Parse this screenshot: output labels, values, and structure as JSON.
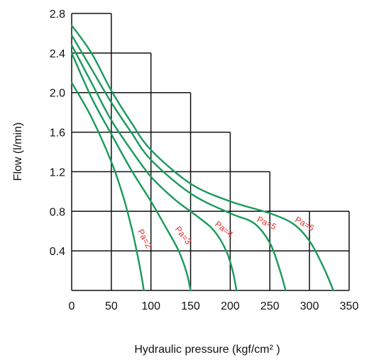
{
  "chart_data": {
    "type": "line",
    "xlabel": "Hydraulic pressure (kgf/cm² )",
    "ylabel": "Flow  (l/min)",
    "xlim": [
      0,
      350
    ],
    "ylim": [
      0,
      2.8
    ],
    "x_ticks": [
      "0",
      "50",
      "100",
      "150",
      "200",
      "250",
      "300",
      "350"
    ],
    "y_ticks": [
      "0.4",
      "0.8",
      "1.2",
      "1.6",
      "2.0",
      "2.4",
      "2.8"
    ],
    "grid": "stepped",
    "line_color": "#1a9a5a",
    "label_color": "#e0302a",
    "series": [
      {
        "name": "Pa=2",
        "x": [
          0,
          25,
          50,
          65,
          75,
          82,
          88,
          91
        ],
        "y": [
          2.1,
          1.75,
          1.3,
          0.95,
          0.65,
          0.4,
          0.15,
          0.0
        ]
      },
      {
        "name": "Pa=3",
        "x": [
          0,
          25,
          50,
          75,
          100,
          120,
          135,
          145,
          150
        ],
        "y": [
          2.4,
          1.95,
          1.58,
          1.22,
          0.9,
          0.62,
          0.4,
          0.18,
          0.0
        ]
      },
      {
        "name": "Pa=4",
        "x": [
          0,
          25,
          50,
          75,
          100,
          130,
          160,
          180,
          195,
          203,
          208
        ],
        "y": [
          2.48,
          2.1,
          1.72,
          1.42,
          1.15,
          0.92,
          0.74,
          0.6,
          0.4,
          0.2,
          0.0
        ]
      },
      {
        "name": "Pa=5",
        "x": [
          0,
          25,
          50,
          75,
          100,
          150,
          200,
          230,
          250,
          262,
          270
        ],
        "y": [
          2.58,
          2.24,
          1.9,
          1.6,
          1.32,
          0.98,
          0.78,
          0.68,
          0.48,
          0.22,
          0.0
        ]
      },
      {
        "name": "Pa=6",
        "x": [
          0,
          25,
          50,
          75,
          100,
          150,
          200,
          250,
          280,
          300,
          315,
          325,
          330
        ],
        "y": [
          2.68,
          2.4,
          2.02,
          1.7,
          1.42,
          1.08,
          0.9,
          0.78,
          0.67,
          0.5,
          0.28,
          0.1,
          0.0
        ]
      }
    ]
  }
}
